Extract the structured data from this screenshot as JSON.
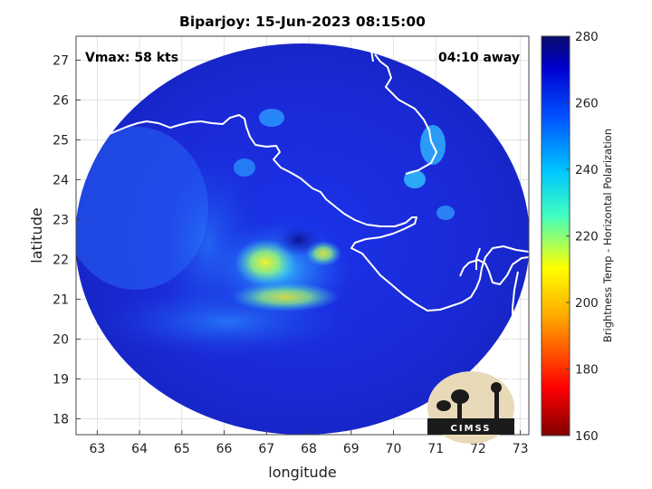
{
  "title": "Biparjoy: 15-Jun-2023 08:15:00",
  "vmax_label": "Vmax: 58 kts",
  "time_away_label": "04:10 away",
  "logo_text": "CIMSS",
  "colors": {
    "land_outline": "#ffffff",
    "background_disk_edge": "#1a2ad8",
    "cloud_core": "#f5f04a",
    "colormap_top": "#0d0f6e",
    "colormap_bottom": "#7a0000"
  },
  "chart_data": {
    "type": "heatmap",
    "title": "Biparjoy: 15-Jun-2023 08:15:00",
    "xlabel": "longitude",
    "ylabel": "latitude",
    "xlim": [
      62.5,
      73.2
    ],
    "ylim": [
      17.6,
      27.6
    ],
    "x_ticks": [
      "63",
      "64",
      "65",
      "66",
      "67",
      "68",
      "69",
      "70",
      "71",
      "72",
      "73"
    ],
    "y_ticks": [
      "27",
      "26",
      "25",
      "24",
      "23",
      "22",
      "21",
      "20",
      "19",
      "18"
    ],
    "grid": true,
    "storm_center": {
      "lon": 67.5,
      "lat": 22.4
    },
    "colorbar": {
      "label": "Brightness Temp - Horizontal Polarization",
      "range": [
        160,
        280
      ],
      "ticks": [
        "280",
        "260",
        "240",
        "220",
        "200",
        "180",
        "160"
      ],
      "colormap": "jet"
    },
    "features": [
      {
        "name": "eye",
        "lon": 67.6,
        "lat": 22.4,
        "approx_temp": 265
      },
      {
        "name": "western-eyewall-max",
        "lon": 67.0,
        "lat": 21.9,
        "approx_temp": 205
      },
      {
        "name": "eastern-eyewall",
        "lon": 68.4,
        "lat": 22.1,
        "approx_temp": 215
      },
      {
        "name": "southern-band",
        "lon": 67.3,
        "lat": 21.1,
        "approx_temp": 220
      }
    ]
  }
}
